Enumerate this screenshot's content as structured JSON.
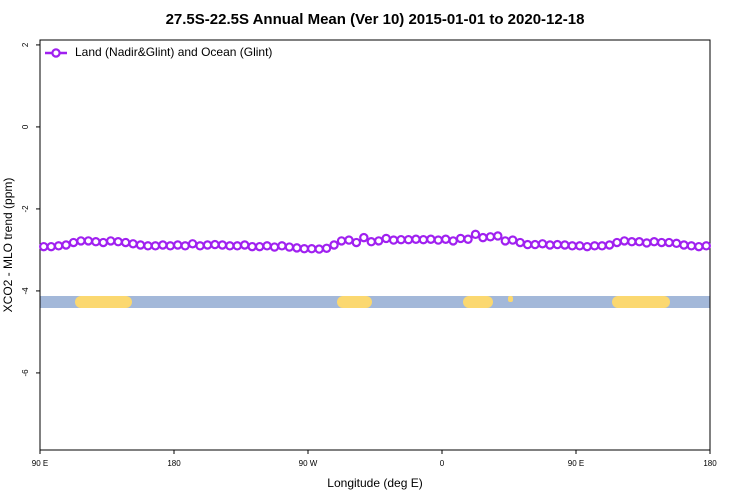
{
  "chart_data": {
    "type": "line",
    "title": "27.5S-22.5S Annual Mean (Ver 10)   2015-01-01 to 2020-12-18",
    "xlabel": "Longitude (deg E)",
    "ylabel": "XCO2 - MLO trend (ppm)",
    "xlim": [
      90,
      540
    ],
    "ylim": [
      -7.88,
      2.12
    ],
    "xticks": [
      {
        "value": 90,
        "label": "90 E"
      },
      180,
      {
        "value": 270,
        "label": "90 W"
      },
      {
        "value": 360,
        "label": "0"
      },
      {
        "value": 450,
        "label": "90 E"
      },
      {
        "value": 540,
        "label": "180"
      }
    ],
    "yticks": [
      2,
      0,
      -2,
      -4,
      -6
    ],
    "legend": "top-left",
    "x": [
      92.5,
      97.5,
      102.5,
      107.5,
      112.5,
      117.5,
      122.5,
      127.5,
      132.5,
      137.5,
      142.5,
      147.5,
      152.5,
      157.5,
      162.5,
      167.5,
      172.5,
      177.5,
      182.5,
      187.5,
      192.5,
      197.5,
      202.5,
      207.5,
      212.5,
      217.5,
      222.5,
      227.5,
      232.5,
      237.5,
      242.5,
      247.5,
      252.5,
      257.5,
      262.5,
      267.5,
      272.5,
      277.5,
      282.5,
      287.5,
      292.5,
      297.5,
      302.5,
      307.5,
      312.5,
      317.5,
      322.5,
      327.5,
      332.5,
      337.5,
      342.5,
      347.5,
      352.5,
      357.5,
      362.5,
      367.5,
      372.5,
      377.5,
      382.5,
      387.5,
      392.5,
      397.5,
      402.5,
      407.5,
      412.5,
      417.5,
      422.5,
      427.5,
      432.5,
      437.5,
      442.5,
      447.5,
      452.5,
      457.5,
      462.5,
      467.5,
      472.5,
      477.5,
      482.5,
      487.5,
      492.5,
      497.5,
      502.5,
      507.5,
      512.5,
      517.5,
      522.5,
      527.5,
      532.5,
      537.5
    ],
    "series": [
      {
        "name": "Land (Nadir&Glint) and Ocean (Glint)",
        "color": "#a020f0",
        "values": [
          -2.92,
          -2.92,
          -2.9,
          -2.88,
          -2.82,
          -2.78,
          -2.78,
          -2.8,
          -2.82,
          -2.78,
          -2.8,
          -2.82,
          -2.85,
          -2.88,
          -2.9,
          -2.9,
          -2.88,
          -2.9,
          -2.88,
          -2.9,
          -2.85,
          -2.9,
          -2.88,
          -2.87,
          -2.88,
          -2.9,
          -2.9,
          -2.88,
          -2.92,
          -2.92,
          -2.9,
          -2.93,
          -2.9,
          -2.93,
          -2.95,
          -2.97,
          -2.97,
          -2.98,
          -2.96,
          -2.88,
          -2.78,
          -2.76,
          -2.82,
          -2.7,
          -2.8,
          -2.78,
          -2.72,
          -2.76,
          -2.75,
          -2.75,
          -2.74,
          -2.75,
          -2.74,
          -2.76,
          -2.74,
          -2.78,
          -2.72,
          -2.74,
          -2.62,
          -2.7,
          -2.68,
          -2.66,
          -2.78,
          -2.76,
          -2.82,
          -2.87,
          -2.87,
          -2.85,
          -2.88,
          -2.87,
          -2.88,
          -2.9,
          -2.9,
          -2.92,
          -2.9,
          -2.9,
          -2.88,
          -2.82,
          -2.78,
          -2.8,
          -2.8,
          -2.83,
          -2.8,
          -2.82,
          -2.82,
          -2.84,
          -2.88,
          -2.9,
          -2.92,
          -2.9
        ]
      }
    ]
  }
}
